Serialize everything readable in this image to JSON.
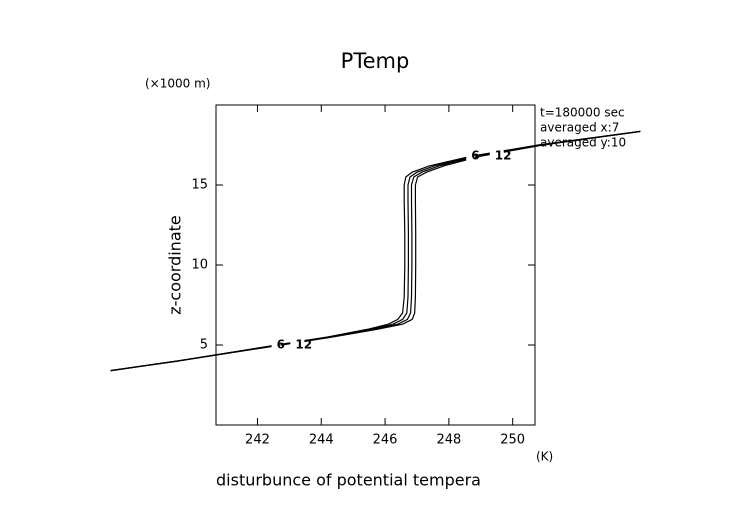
{
  "chart_data": {
    "type": "line",
    "title": "PTemp",
    "y_unit": "(×1000 m)",
    "ylabel": "z-coordinate",
    "xlabel": "disturbunce of potential tempera",
    "x_unit": "(K)",
    "annotations": [
      "t=180000 sec",
      "averaged  x:7",
      "averaged  y:10"
    ],
    "y": [
      3.4,
      4,
      5,
      5.5,
      6,
      6.3,
      6.6,
      7,
      8,
      10,
      12,
      14,
      15,
      15.5,
      15.8,
      16.2,
      16.8,
      17.5,
      18.35
    ],
    "series": [
      {
        "name": "6",
        "color": "#000000",
        "values": [
          237.4,
          239.5,
          242.6,
          244.2,
          245.5,
          246.1,
          246.4,
          246.55,
          246.6,
          246.62,
          246.62,
          246.6,
          246.6,
          246.65,
          246.85,
          247.4,
          248.7,
          250.8,
          254
        ]
      },
      {
        "color": "#000000",
        "values": [
          237.4,
          239.5,
          242.65,
          244.25,
          245.6,
          246.25,
          246.55,
          246.68,
          246.72,
          246.73,
          246.73,
          246.72,
          246.72,
          246.78,
          247.0,
          247.55,
          248.8,
          250.85,
          254
        ]
      },
      {
        "color": "#000000",
        "values": [
          237.4,
          239.5,
          242.7,
          244.3,
          245.7,
          246.4,
          246.7,
          246.8,
          246.83,
          246.84,
          246.84,
          246.83,
          246.83,
          246.9,
          247.15,
          247.7,
          248.9,
          250.9,
          254
        ]
      },
      {
        "name": "12",
        "color": "#000000",
        "values": [
          237.4,
          239.5,
          242.75,
          244.35,
          245.8,
          246.55,
          246.85,
          246.93,
          246.95,
          246.96,
          246.96,
          246.95,
          246.95,
          247.02,
          247.3,
          247.85,
          249.0,
          250.95,
          254
        ]
      }
    ],
    "label_index": [
      2,
      16
    ],
    "xlim": [
      240.7,
      250.7
    ],
    "ylim": [
      0,
      20
    ],
    "xticks": [
      242,
      244,
      246,
      248,
      250
    ],
    "yticks": [
      5,
      10,
      15
    ]
  }
}
